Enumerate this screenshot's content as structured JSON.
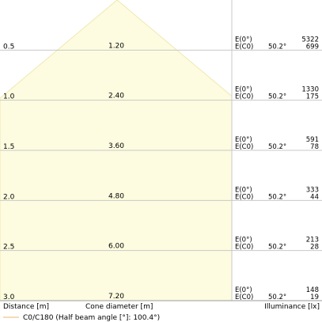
{
  "chart_data": {
    "type": "area",
    "xlabel": "Cone diameter [m]",
    "ylabel": "Distance [m]",
    "right_label": "Illuminance [lx]",
    "legend": {
      "label": "C0/C180 (Half beam angle [°]: 100.4°)",
      "color": "#f2c48a",
      "placement": "bottom-left"
    },
    "fill_color": "#fdfce0",
    "cone_edge_color": "#f0e7b0",
    "grid_color": "#c8c8c8",
    "rows": [
      {
        "distance": "0.5",
        "diameter": "1.20",
        "e0_label": "E(0°)",
        "ec0_label": "E(C0)",
        "angle": "50.2°",
        "e0": "5322",
        "ec0": "699"
      },
      {
        "distance": "1.0",
        "diameter": "2.40",
        "e0_label": "E(0°)",
        "ec0_label": "E(C0)",
        "angle": "50.2°",
        "e0": "1330",
        "ec0": "175"
      },
      {
        "distance": "1.5",
        "diameter": "3.60",
        "e0_label": "E(0°)",
        "ec0_label": "E(C0)",
        "angle": "50.2°",
        "e0": "591",
        "ec0": "78"
      },
      {
        "distance": "2.0",
        "diameter": "4.80",
        "e0_label": "E(0°)",
        "ec0_label": "E(C0)",
        "angle": "50.2°",
        "e0": "333",
        "ec0": "44"
      },
      {
        "distance": "2.5",
        "diameter": "6.00",
        "e0_label": "E(0°)",
        "ec0_label": "E(C0)",
        "angle": "50.2°",
        "e0": "213",
        "ec0": "28"
      },
      {
        "distance": "3.0",
        "diameter": "7.20",
        "e0_label": "E(0°)",
        "ec0_label": "E(C0)",
        "angle": "50.2°",
        "e0": "148",
        "ec0": "19"
      }
    ],
    "distance_max": 3.0
  }
}
